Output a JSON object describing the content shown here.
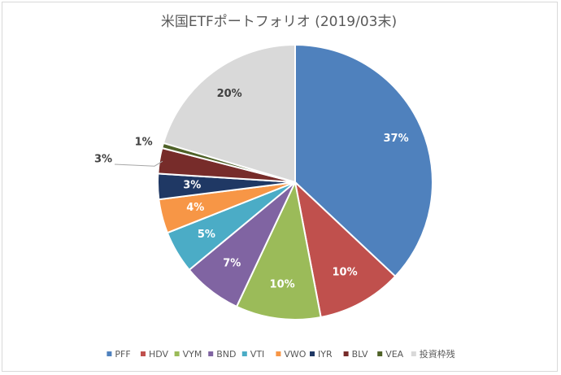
{
  "chart_data": {
    "type": "pie",
    "title": "米国ETFポートフォリオ (2019/03末)",
    "start_angle_deg": 0,
    "direction": "clockwise",
    "legend_position": "bottom",
    "slices": [
      {
        "name": "PFF",
        "value": 37,
        "label": "37%",
        "color": "#4f81bd",
        "label_color": "#ffffff"
      },
      {
        "name": "HDV",
        "value": 10,
        "label": "10%",
        "color": "#c0504d",
        "label_color": "#ffffff"
      },
      {
        "name": "VYM",
        "value": 10,
        "label": "10%",
        "color": "#9bbb59",
        "label_color": "#ffffff"
      },
      {
        "name": "BND",
        "value": 7,
        "label": "7%",
        "color": "#8064a2",
        "label_color": "#ffffff"
      },
      {
        "name": "VTI",
        "value": 5,
        "label": "5%",
        "color": "#4bacc6",
        "label_color": "#ffffff"
      },
      {
        "name": "VWO",
        "value": 4,
        "label": "4%",
        "color": "#f79646",
        "label_color": "#ffffff"
      },
      {
        "name": "IYR",
        "value": 3,
        "label": "3%",
        "color": "#1f3864",
        "label_color": "#ffffff"
      },
      {
        "name": "BLV",
        "value": 3,
        "label": "3%",
        "color": "#772c2a",
        "label_color": "#404040",
        "leader_line": true
      },
      {
        "name": "VEA",
        "value": 0.6,
        "label": "1%",
        "color": "#4f6228",
        "label_color": "#404040",
        "outside": true
      },
      {
        "name": "投資枠残",
        "value": 20.4,
        "label": "20%",
        "color": "#d9d9d9",
        "label_color": "#404040"
      }
    ]
  }
}
